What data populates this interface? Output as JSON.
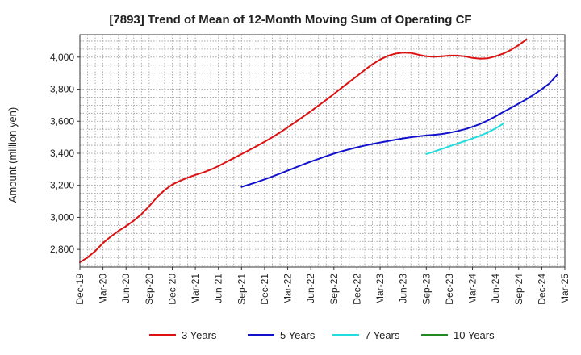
{
  "chart_data": {
    "type": "line",
    "title": "[7893]  Trend of Mean of 12-Month Moving Sum of Operating CF",
    "xlabel": "",
    "ylabel": "Amount (million yen)",
    "ylim": [
      2690,
      4140
    ],
    "yticks": [
      2800,
      3000,
      3200,
      3400,
      3600,
      3800,
      4000
    ],
    "ytick_labels": [
      "2,800",
      "3,000",
      "3,200",
      "3,400",
      "3,600",
      "3,800",
      "4,000"
    ],
    "x_start": "Dec-19",
    "x_end": "Mar-25",
    "xtick_labels": [
      "Dec-19",
      "Mar-20",
      "Jun-20",
      "Sep-20",
      "Dec-20",
      "Mar-21",
      "Jun-21",
      "Sep-21",
      "Dec-21",
      "Mar-22",
      "Jun-22",
      "Sep-22",
      "Dec-22",
      "Mar-23",
      "Jun-23",
      "Sep-23",
      "Dec-23",
      "Mar-24",
      "Jun-24",
      "Sep-24",
      "Dec-24",
      "Mar-25"
    ],
    "grid": true,
    "legend_position": "bottom",
    "colors": {
      "grid": "#999999",
      "axis": "#333333"
    },
    "series": [
      {
        "name": "3 Years",
        "color": "#dd1111",
        "start_month_index": 0,
        "values": [
          2720,
          2750,
          2790,
          2840,
          2880,
          2915,
          2945,
          2980,
          3020,
          3070,
          3125,
          3170,
          3205,
          3228,
          3248,
          3265,
          3280,
          3298,
          3320,
          3345,
          3370,
          3395,
          3420,
          3445,
          3472,
          3500,
          3530,
          3562,
          3595,
          3628,
          3662,
          3698,
          3733,
          3770,
          3808,
          3845,
          3882,
          3920,
          3955,
          3985,
          4008,
          4022,
          4028,
          4026,
          4015,
          4005,
          4002,
          4005,
          4010,
          4010,
          4005,
          3995,
          3990,
          3993,
          4005,
          4022,
          4045,
          4075,
          4110
        ]
      },
      {
        "name": "5 Years",
        "color": "#1111cc",
        "start_month_index": 21,
        "values": [
          3190,
          3205,
          3220,
          3237,
          3255,
          3273,
          3292,
          3311,
          3330,
          3348,
          3365,
          3382,
          3398,
          3412,
          3425,
          3437,
          3448,
          3458,
          3467,
          3476,
          3485,
          3493,
          3500,
          3506,
          3511,
          3515,
          3520,
          3528,
          3538,
          3550,
          3565,
          3583,
          3605,
          3630,
          3657,
          3683,
          3710,
          3737,
          3767,
          3800,
          3836,
          3890
        ]
      },
      {
        "name": "7 Years",
        "color": "#22dddd",
        "start_month_index": 45,
        "values": [
          3395,
          3410,
          3427,
          3443,
          3460,
          3476,
          3492,
          3510,
          3530,
          3555,
          3585
        ]
      },
      {
        "name": "10 Years",
        "color": "#228822",
        "start_month_index": 0,
        "values": []
      }
    ]
  }
}
